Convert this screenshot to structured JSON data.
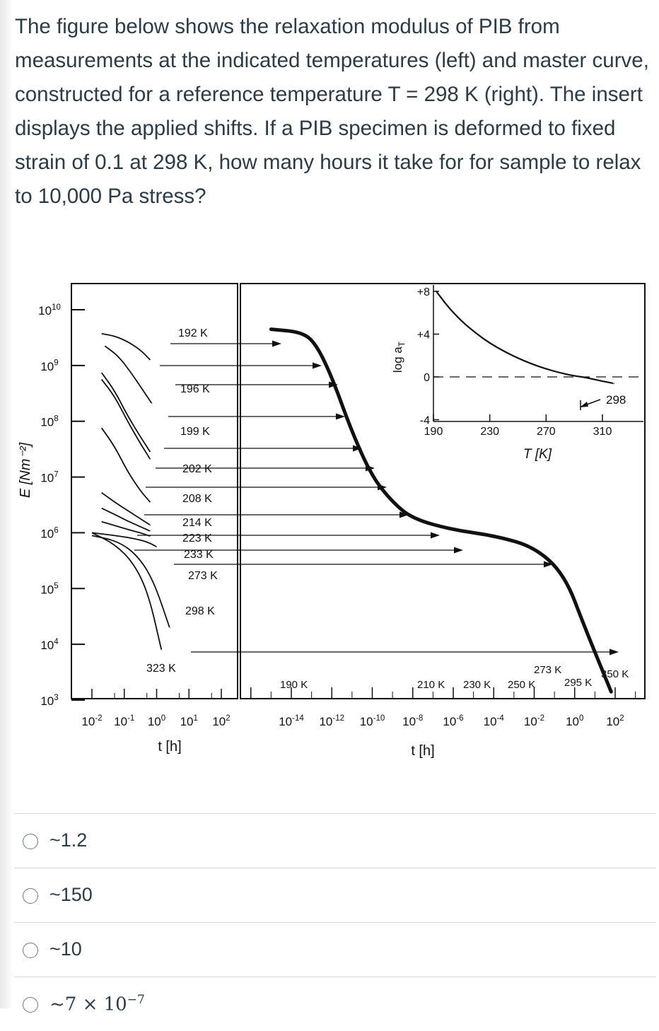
{
  "question": {
    "text": "The figure below shows the relaxation modulus of PIB from measurements at the indicated temperatures (left) and master curve, constructed for a reference temperature T = 298 K (right). The insert displays the applied shifts. If a PIB specimen is deformed to fixed strain of 0.1 at 298 K, how many hours it take for for sample to relax to 10,000 Pa stress?"
  },
  "answers": [
    {
      "label": "~1.2"
    },
    {
      "label": "~150"
    },
    {
      "label": "~10"
    },
    {
      "label": "~7 × 10",
      "exponent": "−7"
    }
  ],
  "chart_data": [
    {
      "type": "line",
      "ylabel": "E [Nm⁻²]",
      "xlabel": "t [h]",
      "y_ticks": [
        {
          "base": "10",
          "exp": "10"
        },
        {
          "base": "10",
          "exp": "9"
        },
        {
          "base": "10",
          "exp": "8"
        },
        {
          "base": "10",
          "exp": "7"
        },
        {
          "base": "10",
          "exp": "6"
        },
        {
          "base": "10",
          "exp": "5"
        },
        {
          "base": "10",
          "exp": "4"
        },
        {
          "base": "10",
          "exp": "3"
        }
      ],
      "x_ticks": [
        {
          "base": "10",
          "exp": "-2"
        },
        {
          "base": "10",
          "exp": "-1"
        },
        {
          "base": "10",
          "exp": "0"
        },
        {
          "base": "10",
          "exp": "1"
        },
        {
          "base": "10",
          "exp": "2"
        }
      ],
      "ylim_log10": [
        3,
        10
      ],
      "xlim_log10": [
        -2,
        2
      ],
      "series": [
        {
          "name": "192 K",
          "x_log10": [
            -1.7,
            -1.3,
            -0.9,
            -0.5,
            -0.2
          ],
          "y_log10": [
            9.57,
            9.53,
            9.43,
            9.28,
            9.1
          ]
        },
        {
          "name": "196 K",
          "x_log10": [
            -1.6,
            -1.2,
            -0.8,
            -0.45,
            -0.15
          ],
          "y_log10": [
            9.35,
            9.18,
            8.88,
            8.58,
            8.32
          ]
        },
        {
          "name": "199 K",
          "x_log10": [
            -1.7,
            -1.3,
            -0.9,
            -0.5,
            -0.2
          ],
          "y_log10": [
            8.87,
            8.55,
            8.1,
            7.72,
            7.45
          ]
        },
        {
          "name": "202 K",
          "x_log10": [
            -1.7,
            -1.3,
            -0.9,
            -0.5,
            -0.2
          ],
          "y_log10": [
            8.75,
            8.45,
            8.0,
            7.6,
            7.32
          ]
        },
        {
          "name": "208 K",
          "x_log10": [
            -1.7,
            -1.3,
            -0.9,
            -0.5,
            -0.2
          ],
          "y_log10": [
            7.88,
            7.55,
            7.1,
            6.75,
            6.55
          ]
        },
        {
          "name": "214 K",
          "x_log10": [
            -1.7,
            -1.3,
            -0.9,
            -0.5,
            -0.2
          ],
          "y_log10": [
            6.72,
            6.55,
            6.4,
            6.25,
            6.14
          ]
        },
        {
          "name": "223 K",
          "x_log10": [
            -1.7,
            -1.3,
            -0.9,
            -0.5,
            -0.2
          ],
          "y_log10": [
            6.44,
            6.33,
            6.21,
            6.11,
            6.03
          ]
        },
        {
          "name": "233 K",
          "x_log10": [
            -1.7,
            -1.3,
            -0.9,
            -0.5,
            -0.2
          ],
          "y_log10": [
            6.2,
            6.13,
            6.06,
            6.0,
            5.94
          ]
        },
        {
          "name": "273 K",
          "x_log10": [
            -2.0,
            -1.4,
            -0.8,
            -0.3,
            0.0
          ],
          "y_log10": [
            6.0,
            5.96,
            5.91,
            5.84,
            5.75
          ]
        },
        {
          "name": "298 K",
          "x_log10": [
            -2.0,
            -1.2,
            -0.6,
            -0.1,
            0.4
          ],
          "y_log10": [
            5.95,
            5.85,
            5.6,
            5.15,
            4.3
          ]
        },
        {
          "name": "323 K",
          "x_log10": [
            -2.0,
            -1.3,
            -0.7,
            -0.25,
            0.15
          ],
          "y_log10": [
            6.0,
            5.8,
            5.45,
            4.9,
            3.9
          ]
        }
      ]
    },
    {
      "type": "line",
      "xlabel": "t [h]",
      "x_ticks": [
        {
          "base": "10",
          "exp": "-14"
        },
        {
          "base": "10",
          "exp": "-12"
        },
        {
          "base": "10",
          "exp": "-10"
        },
        {
          "base": "10",
          "exp": "-8"
        },
        {
          "base": "10",
          "exp": "-6"
        },
        {
          "base": "10",
          "exp": "-4"
        },
        {
          "base": "10",
          "exp": "-2"
        },
        {
          "base": "10",
          "exp": "0"
        },
        {
          "base": "10",
          "exp": "2"
        }
      ],
      "xlim_log10": [
        -16,
        3
      ],
      "series": [
        {
          "x_log10": [
            -15,
            -13.5,
            -12.8,
            -12,
            -11,
            -10,
            -9,
            -8,
            -6,
            -4,
            -2,
            -0.5,
            0.5,
            1.8
          ],
          "y_log10": [
            9.65,
            9.6,
            9.4,
            8.8,
            7.8,
            7.0,
            6.55,
            6.25,
            6.05,
            5.95,
            5.75,
            5.25,
            4.3,
            3.15
          ]
        }
      ],
      "temperature_labels": [
        "190 K",
        "210 K",
        "230 K",
        "250 K",
        "273 K",
        "295 K",
        "350 K"
      ]
    },
    {
      "type": "line",
      "ylabel": "log a",
      "ylabel_sub": "T",
      "xlabel": "T [K]",
      "x_ticks": [
        "190",
        "230",
        "270",
        "310"
      ],
      "y_ticks": [
        "+8",
        "+4",
        "0",
        "-4"
      ],
      "xlim": [
        180,
        320
      ],
      "ylim": [
        -4,
        8
      ],
      "reference_label": "298",
      "series": [
        {
          "x": [
            192,
            200,
            210,
            220,
            230,
            240,
            250,
            260,
            270,
            280,
            290,
            298,
            310,
            318
          ],
          "y": [
            8.0,
            6.6,
            5.2,
            4.1,
            3.15,
            2.4,
            1.75,
            1.2,
            0.75,
            0.38,
            0.1,
            -0.05,
            -0.4,
            -0.6
          ]
        }
      ]
    }
  ]
}
